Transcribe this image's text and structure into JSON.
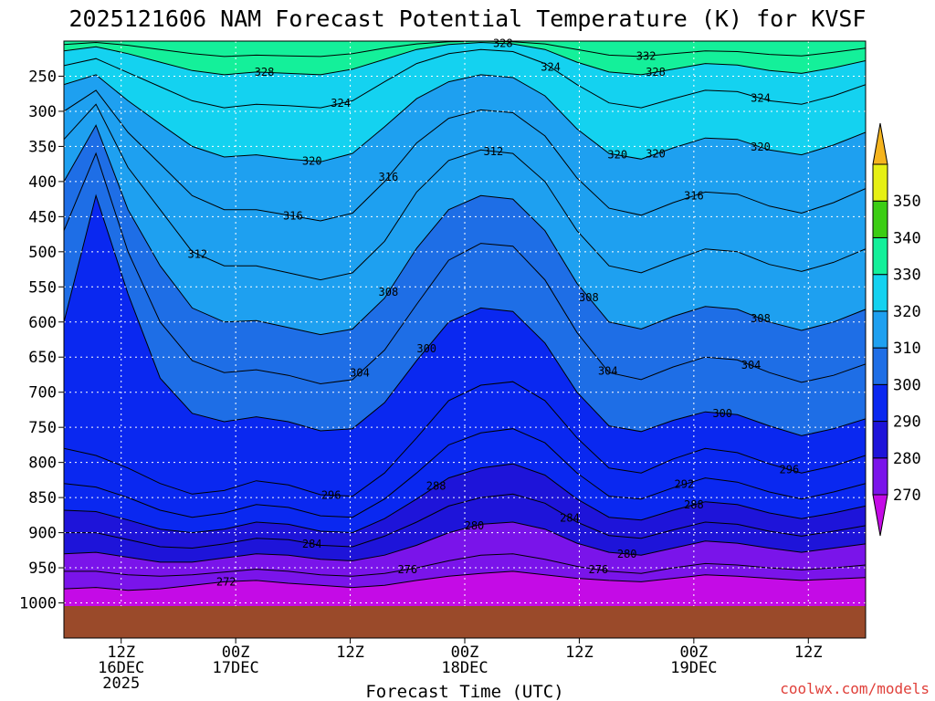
{
  "chart_data": {
    "type": "heatmap",
    "title": "2025121606 NAM Forecast Potential Temperature (K) for KVSF",
    "xlabel": "Forecast Time (UTC)",
    "ylabel": "",
    "x_ticks": [
      {
        "hour": 6,
        "lines": [
          "12Z",
          "16DEC",
          "2025"
        ]
      },
      {
        "hour": 18,
        "lines": [
          "00Z",
          "17DEC"
        ]
      },
      {
        "hour": 30,
        "lines": [
          "12Z"
        ]
      },
      {
        "hour": 42,
        "lines": [
          "00Z",
          "18DEC"
        ]
      },
      {
        "hour": 54,
        "lines": [
          "12Z"
        ]
      },
      {
        "hour": 66,
        "lines": [
          "00Z",
          "19DEC"
        ]
      },
      {
        "hour": 78,
        "lines": [
          "12Z"
        ]
      }
    ],
    "xlim": [
      0,
      84
    ],
    "y_ticks": [
      250,
      300,
      350,
      400,
      450,
      500,
      550,
      600,
      650,
      700,
      750,
      800,
      850,
      900,
      950,
      1000
    ],
    "ylim": [
      200,
      1050
    ],
    "grid": true,
    "colorbar": {
      "levels": [
        260,
        270,
        280,
        290,
        300,
        310,
        320,
        330,
        340,
        350,
        360
      ],
      "tick_labels": [
        "270",
        "280",
        "290",
        "300",
        "310",
        "320",
        "330",
        "340",
        "350"
      ],
      "colors": [
        "#ff19e6",
        "#c40be6",
        "#7a14ea",
        "#1e14d9",
        "#0a28f0",
        "#1e6ee6",
        "#1ea0f0",
        "#14d2f0",
        "#14f09a",
        "#3ccd14",
        "#e6f014",
        "#f5b41e"
      ]
    },
    "contour_labels": [
      "328",
      "324",
      "332",
      "328",
      "324",
      "324",
      "328",
      "320",
      "320",
      "316",
      "312",
      "320",
      "320",
      "316",
      "312",
      "316",
      "308",
      "308",
      "308",
      "304",
      "304",
      "304",
      "300",
      "300",
      "296",
      "296",
      "292",
      "288",
      "288",
      "284",
      "284",
      "280",
      "280",
      "276",
      "276",
      "272"
    ],
    "series": [
      {
        "theta": 272,
        "p": [
          980,
          978,
          982,
          980,
          975,
          970,
          968,
          972,
          975,
          978,
          975,
          968,
          962,
          958,
          955,
          960,
          965,
          968,
          970,
          965,
          960,
          962,
          965,
          968,
          966,
          964
        ]
      },
      {
        "theta": 276,
        "p": [
          955,
          955,
          960,
          962,
          960,
          956,
          952,
          955,
          960,
          962,
          958,
          950,
          940,
          932,
          930,
          938,
          948,
          955,
          958,
          950,
          944,
          946,
          950,
          953,
          950,
          946
        ]
      },
      {
        "theta": 280,
        "p": [
          930,
          928,
          935,
          942,
          942,
          936,
          930,
          932,
          938,
          940,
          932,
          918,
          900,
          888,
          885,
          895,
          915,
          928,
          932,
          922,
          912,
          915,
          922,
          928,
          922,
          916
        ]
      },
      {
        "theta": 284,
        "p": [
          900,
          900,
          910,
          920,
          922,
          916,
          908,
          910,
          918,
          920,
          905,
          885,
          862,
          850,
          845,
          858,
          885,
          904,
          908,
          896,
          885,
          888,
          898,
          905,
          898,
          890
        ]
      },
      {
        "theta": 288,
        "p": [
          868,
          870,
          882,
          895,
          900,
          895,
          885,
          888,
          898,
          900,
          880,
          852,
          822,
          808,
          802,
          818,
          852,
          878,
          882,
          868,
          856,
          860,
          872,
          880,
          872,
          862
        ]
      },
      {
        "theta": 292,
        "p": [
          830,
          835,
          850,
          868,
          878,
          872,
          860,
          864,
          876,
          878,
          852,
          815,
          775,
          758,
          752,
          772,
          815,
          848,
          852,
          836,
          822,
          828,
          842,
          852,
          842,
          830
        ]
      },
      {
        "theta": 296,
        "p": [
          780,
          790,
          808,
          830,
          845,
          840,
          826,
          832,
          846,
          848,
          815,
          765,
          712,
          690,
          685,
          712,
          765,
          808,
          815,
          795,
          780,
          786,
          802,
          815,
          805,
          790
        ]
      },
      {
        "theta": 300,
        "p": [
          600,
          420,
          560,
          680,
          730,
          742,
          735,
          742,
          755,
          752,
          715,
          655,
          600,
          580,
          585,
          630,
          700,
          748,
          756,
          740,
          728,
          732,
          748,
          762,
          752,
          738
        ]
      },
      {
        "theta": 304,
        "p": [
          470,
          360,
          500,
          600,
          655,
          672,
          668,
          676,
          688,
          682,
          640,
          575,
          512,
          488,
          492,
          540,
          615,
          672,
          682,
          664,
          650,
          654,
          672,
          686,
          676,
          660
        ]
      },
      {
        "theta": 308,
        "p": [
          400,
          320,
          440,
          520,
          580,
          600,
          598,
          608,
          618,
          610,
          566,
          495,
          440,
          420,
          425,
          470,
          545,
          600,
          610,
          592,
          578,
          582,
          600,
          612,
          600,
          582
        ]
      },
      {
        "theta": 312,
        "p": [
          340,
          290,
          380,
          440,
          500,
          520,
          520,
          530,
          540,
          530,
          485,
          415,
          370,
          355,
          360,
          400,
          470,
          520,
          530,
          512,
          496,
          500,
          518,
          528,
          515,
          496
        ]
      },
      {
        "theta": 316,
        "p": [
          300,
          270,
          330,
          375,
          420,
          440,
          440,
          448,
          456,
          445,
          400,
          345,
          310,
          298,
          302,
          335,
          395,
          438,
          448,
          430,
          415,
          418,
          435,
          445,
          430,
          410
        ]
      },
      {
        "theta": 320,
        "p": [
          262,
          248,
          285,
          318,
          350,
          365,
          362,
          368,
          372,
          360,
          322,
          282,
          258,
          248,
          252,
          278,
          325,
          360,
          368,
          352,
          338,
          340,
          355,
          362,
          348,
          330
        ]
      },
      {
        "theta": 324,
        "p": [
          235,
          225,
          245,
          265,
          285,
          295,
          290,
          292,
          295,
          285,
          258,
          232,
          218,
          212,
          215,
          232,
          262,
          288,
          295,
          282,
          270,
          272,
          285,
          290,
          278,
          262
        ]
      },
      {
        "theta": 328,
        "p": [
          214,
          208,
          218,
          230,
          242,
          248,
          244,
          246,
          248,
          240,
          226,
          212,
          205,
          202,
          204,
          212,
          230,
          244,
          248,
          240,
          232,
          234,
          242,
          246,
          238,
          228
        ]
      },
      {
        "theta": 332,
        "p": [
          205,
          202,
          206,
          212,
          218,
          222,
          220,
          221,
          222,
          218,
          210,
          204,
          201,
          200,
          201,
          204,
          212,
          220,
          222,
          218,
          214,
          215,
          219,
          221,
          216,
          210
        ]
      }
    ],
    "series_hours": [
      0,
      3.36,
      6.72,
      10.08,
      13.44,
      16.8,
      20.16,
      23.52,
      26.88,
      30.24,
      33.6,
      36.96,
      40.32,
      43.68,
      47.04,
      50.4,
      53.76,
      57.12,
      60.48,
      63.84,
      67.2,
      70.56,
      73.92,
      77.28,
      80.64,
      84
    ]
  },
  "credit": "coolwx.com/models",
  "colors": {
    "terrain": "#9a4a2a",
    "grid": "#ffffff",
    "contour": "#000000"
  }
}
